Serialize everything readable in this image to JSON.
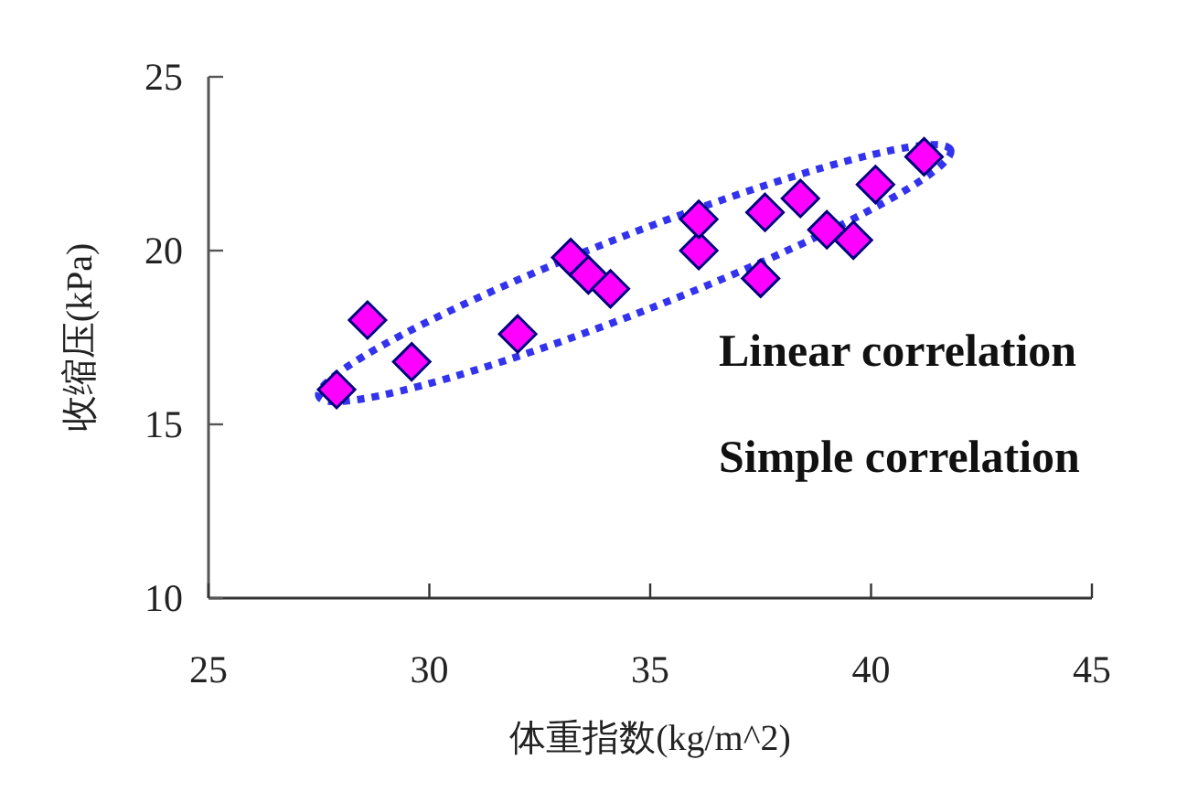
{
  "chart_data": {
    "type": "scatter",
    "xlabel": "体重指数(kg/m^2)",
    "ylabel": "收缩压(kPa)",
    "xlim": [
      25,
      45
    ],
    "xticks": [
      25,
      30,
      35,
      40,
      45
    ],
    "ylim": [
      10,
      25
    ],
    "yticks": [
      10,
      15,
      20,
      25
    ],
    "marker": "diamond",
    "grid": false,
    "series": [
      {
        "color": "#ff00ff",
        "x": [
          27.9,
          28.6,
          29.6,
          32.0,
          33.2,
          33.6,
          34.1,
          36.1,
          36.1,
          37.5,
          37.6,
          38.4,
          39.0,
          39.6,
          40.1,
          41.2
        ],
        "values": [
          16.0,
          18.0,
          16.8,
          17.6,
          19.8,
          19.3,
          18.9,
          20.0,
          20.9,
          19.2,
          21.1,
          21.5,
          20.6,
          20.3,
          21.9,
          22.7
        ]
      }
    ],
    "annotations": [
      "Linear correlation",
      "Simple correlation"
    ]
  }
}
